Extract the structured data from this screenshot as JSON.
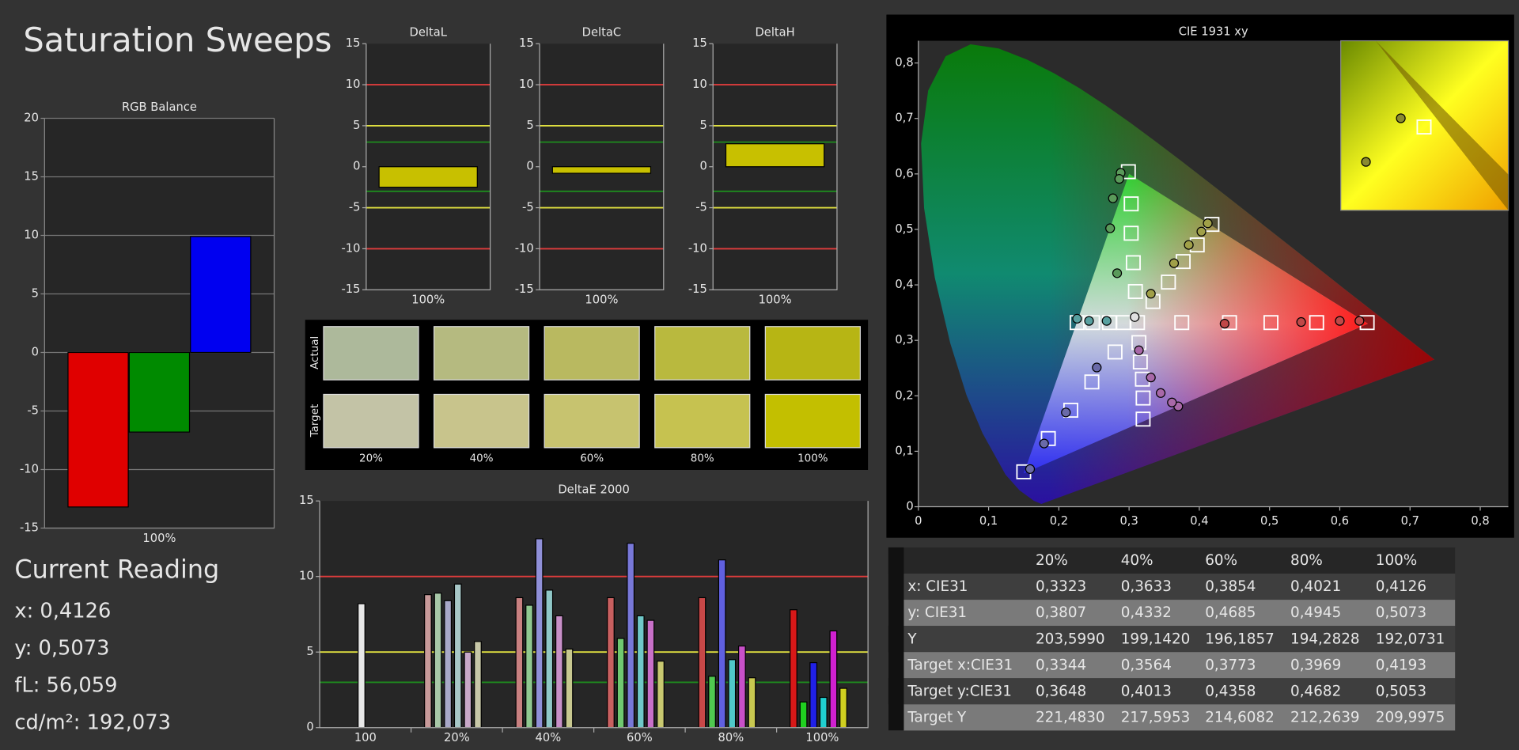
{
  "title": "Saturation Sweeps",
  "chart_data": [
    {
      "type": "bar",
      "title": "RGB Balance",
      "categories": [
        "100%"
      ],
      "series": [
        {
          "color": "#e00000",
          "values": [
            -13.2
          ]
        },
        {
          "color": "#008a00",
          "values": [
            -6.8
          ]
        },
        {
          "color": "#0000f0",
          "values": [
            9.9
          ]
        }
      ],
      "ylim": [
        -15,
        20
      ],
      "yticks": [
        -15,
        -10,
        -5,
        0,
        5,
        10,
        15,
        20
      ],
      "grid": true
    },
    {
      "type": "bar",
      "title": "DeltaL",
      "categories": [
        "100%"
      ],
      "series": [
        {
          "color": "#c8c000",
          "values": [
            -2.5
          ]
        }
      ],
      "ylim": [
        -15,
        15
      ],
      "yticks": [
        -15,
        -10,
        -5,
        0,
        5,
        10,
        15
      ],
      "grid": false,
      "reference_lines": [
        {
          "value": 10,
          "color": "#e03c3c"
        },
        {
          "value": -10,
          "color": "#e03c3c"
        },
        {
          "value": 5,
          "color": "#e0e040"
        },
        {
          "value": -5,
          "color": "#e0e040"
        },
        {
          "value": 3,
          "color": "#1e8c1e"
        },
        {
          "value": -3,
          "color": "#1e8c1e"
        }
      ]
    },
    {
      "type": "bar",
      "title": "DeltaC",
      "categories": [
        "100%"
      ],
      "series": [
        {
          "color": "#c8c000",
          "values": [
            -0.8
          ]
        }
      ],
      "ylim": [
        -15,
        15
      ],
      "yticks": [
        -15,
        -10,
        -5,
        0,
        5,
        10,
        15
      ],
      "grid": false,
      "reference_lines": [
        {
          "value": 10,
          "color": "#e03c3c"
        },
        {
          "value": -10,
          "color": "#e03c3c"
        },
        {
          "value": 5,
          "color": "#e0e040"
        },
        {
          "value": -5,
          "color": "#e0e040"
        },
        {
          "value": 3,
          "color": "#1e8c1e"
        },
        {
          "value": -3,
          "color": "#1e8c1e"
        }
      ]
    },
    {
      "type": "bar",
      "title": "DeltaH",
      "categories": [
        "100%"
      ],
      "series": [
        {
          "color": "#c8c000",
          "values": [
            2.8
          ]
        }
      ],
      "ylim": [
        -15,
        15
      ],
      "yticks": [
        -15,
        -10,
        -5,
        0,
        5,
        10,
        15
      ],
      "grid": false,
      "reference_lines": [
        {
          "value": 10,
          "color": "#e03c3c"
        },
        {
          "value": -10,
          "color": "#e03c3c"
        },
        {
          "value": 5,
          "color": "#e0e040"
        },
        {
          "value": -5,
          "color": "#e0e040"
        },
        {
          "value": 3,
          "color": "#1e8c1e"
        },
        {
          "value": -3,
          "color": "#1e8c1e"
        }
      ]
    },
    {
      "type": "bar",
      "title": "DeltaE 2000",
      "categories": [
        "100",
        "20%",
        "40%",
        "60%",
        "80%",
        "100%"
      ],
      "series": [
        {
          "color": "#e8e8e8",
          "values": [
            8.2,
            null,
            null,
            null,
            null,
            null
          ]
        },
        {
          "color": "#d04040",
          "colors": [
            null,
            "#c89a9a",
            "#c88080",
            "#c86060",
            "#c84848",
            "#d81818"
          ],
          "values": [
            null,
            8.8,
            8.6,
            8.6,
            8.6,
            7.8
          ]
        },
        {
          "color": "#40c040",
          "colors": [
            null,
            "#a8c8a8",
            "#90c890",
            "#70c870",
            "#50c850",
            "#20d020"
          ],
          "values": [
            null,
            8.9,
            8.1,
            5.9,
            3.4,
            1.7
          ]
        },
        {
          "color": "#4040d0",
          "colors": [
            null,
            "#a8a8c8",
            "#9090d8",
            "#7878d8",
            "#6060e0",
            "#2020e8"
          ],
          "values": [
            null,
            8.4,
            12.5,
            12.2,
            11.1,
            4.3
          ]
        },
        {
          "color": "#40c0c0",
          "colors": [
            null,
            "#a8c8c8",
            "#90c8c8",
            "#70c8c8",
            "#50c8c8",
            "#20d0d0"
          ],
          "values": [
            null,
            9.5,
            9.1,
            7.4,
            4.5,
            2.0
          ]
        },
        {
          "color": "#c040c0",
          "colors": [
            null,
            "#c8a8c8",
            "#c890c8",
            "#c870c8",
            "#c850c8",
            "#d020d0"
          ],
          "values": [
            null,
            5.0,
            7.4,
            7.1,
            5.4,
            6.4
          ]
        },
        {
          "color": "#c0c040",
          "colors": [
            null,
            "#c8c8a8",
            "#c8c890",
            "#c8c870",
            "#c8c850",
            "#d0d020"
          ],
          "values": [
            null,
            5.7,
            5.2,
            4.4,
            3.3,
            2.6
          ]
        }
      ],
      "ylim": [
        0,
        15
      ],
      "yticks": [
        0,
        5,
        10,
        15
      ],
      "grid": false,
      "reference_lines": [
        {
          "value": 10,
          "color": "#e03c3c"
        },
        {
          "value": 5,
          "color": "#e0e040"
        },
        {
          "value": 3,
          "color": "#1e8c1e"
        }
      ]
    },
    {
      "type": "scatter",
      "title": "CIE 1931 xy",
      "xlim": [
        0,
        0.84
      ],
      "ylim": [
        0,
        0.84
      ],
      "xticks": [
        0,
        {
          "value": 0.1,
          "label": "0,1"
        },
        {
          "value": 0.2,
          "label": "0,2"
        },
        {
          "value": 0.3,
          "label": "0,3"
        },
        {
          "value": 0.4,
          "label": "0,4"
        },
        {
          "value": 0.5,
          "label": "0,5"
        },
        {
          "value": 0.6,
          "label": "0,6"
        },
        {
          "value": 0.7,
          "label": "0,7"
        },
        {
          "value": 0.8,
          "label": "0,8"
        }
      ],
      "yticks": [
        0,
        {
          "value": 0.1,
          "label": "0,1"
        },
        {
          "value": 0.2,
          "label": "0,2"
        },
        {
          "value": 0.3,
          "label": "0,3"
        },
        {
          "value": 0.4,
          "label": "0,4"
        },
        {
          "value": 0.5,
          "label": "0,5"
        },
        {
          "value": 0.6,
          "label": "0,6"
        },
        {
          "value": 0.7,
          "label": "0,7"
        },
        {
          "value": 0.8,
          "label": "0,8"
        }
      ],
      "series": [
        {
          "marker": "square",
          "color": "#ffffff",
          "x": [
            0.299,
            0.303,
            0.303,
            0.306,
            0.309,
            0.375,
            0.443,
            0.502,
            0.567,
            0.639,
            0.418,
            0.397,
            0.377,
            0.356,
            0.334,
            0.226,
            0.248,
            0.272,
            0.292,
            0.15,
            0.185,
            0.217,
            0.247,
            0.28,
            0.32,
            0.32,
            0.319,
            0.316,
            0.314,
            0.312
          ],
          "y": [
            0.604,
            0.546,
            0.493,
            0.44,
            0.388,
            0.332,
            0.332,
            0.332,
            0.332,
            0.332,
            0.509,
            0.472,
            0.442,
            0.405,
            0.37,
            0.332,
            0.332,
            0.332,
            0.332,
            0.063,
            0.123,
            0.174,
            0.225,
            0.279,
            0.158,
            0.196,
            0.23,
            0.261,
            0.296,
            0.332
          ]
        },
        {
          "marker": "circle",
          "color": "#5a9a5a",
          "x": [
            0.288,
            0.286,
            0.277,
            0.273,
            0.283
          ],
          "y": [
            0.602,
            0.591,
            0.556,
            0.502,
            0.421
          ]
        },
        {
          "marker": "circle",
          "color": "#c04848",
          "x": [
            0.628,
            0.6,
            0.545,
            0.436
          ],
          "y": [
            0.335,
            0.335,
            0.333,
            0.33
          ]
        },
        {
          "marker": "circle",
          "color": "#a0a048",
          "x": [
            0.412,
            0.403,
            0.385,
            0.364,
            0.331
          ],
          "y": [
            0.511,
            0.496,
            0.472,
            0.439,
            0.384
          ]
        },
        {
          "marker": "circle",
          "color": "#58a0a0",
          "x": [
            0.226,
            0.243,
            0.268
          ],
          "y": [
            0.339,
            0.335,
            0.335
          ]
        },
        {
          "marker": "circle",
          "color": "#6a6aa8",
          "x": [
            0.159,
            0.179,
            0.21,
            0.254
          ],
          "y": [
            0.068,
            0.114,
            0.17,
            0.251
          ]
        },
        {
          "marker": "circle",
          "color": "#a868a8",
          "x": [
            0.37,
            0.361,
            0.345,
            0.331,
            0.314
          ],
          "y": [
            0.181,
            0.188,
            0.205,
            0.233,
            0.282
          ]
        },
        {
          "marker": "circle",
          "color": "#e0e0e0",
          "x": [
            0.308
          ],
          "y": [
            0.342
          ]
        }
      ]
    }
  ],
  "swatches": {
    "columns": [
      "20%",
      "40%",
      "60%",
      "80%",
      "100%"
    ],
    "rows": [
      {
        "label": "Actual",
        "colors": [
          "#adb99b",
          "#b5ba80",
          "#b9b960",
          "#b9b93e",
          "#b7b514"
        ]
      },
      {
        "label": "Target",
        "colors": [
          "#c3c3a6",
          "#c8c48c",
          "#c7c36f",
          "#c6c250",
          "#c3bf00"
        ]
      }
    ]
  },
  "table": {
    "columns": [
      "20%",
      "40%",
      "60%",
      "80%",
      "100%"
    ],
    "rows": [
      [
        "x: CIE31",
        "0,3323",
        "0,3633",
        "0,3854",
        "0,4021",
        "0,4126"
      ],
      [
        "y: CIE31",
        "0,3807",
        "0,4332",
        "0,4685",
        "0,4945",
        "0,5073"
      ],
      [
        "Y",
        "203,5990",
        "199,1420",
        "196,1857",
        "194,2828",
        "192,0731"
      ],
      [
        "Target x:CIE31",
        "0,3344",
        "0,3564",
        "0,3773",
        "0,3969",
        "0,4193"
      ],
      [
        "Target y:CIE31",
        "0,3648",
        "0,4013",
        "0,4358",
        "0,4682",
        "0,5053"
      ],
      [
        "Target Y",
        "221,4830",
        "217,5953",
        "214,6082",
        "212,2639",
        "209,9975"
      ]
    ]
  },
  "current_reading": {
    "title": "Current Reading",
    "lines": [
      "x: 0,4126",
      "y: 0,5073",
      "fL: 56,059",
      "cd/m²: 192,073"
    ]
  }
}
